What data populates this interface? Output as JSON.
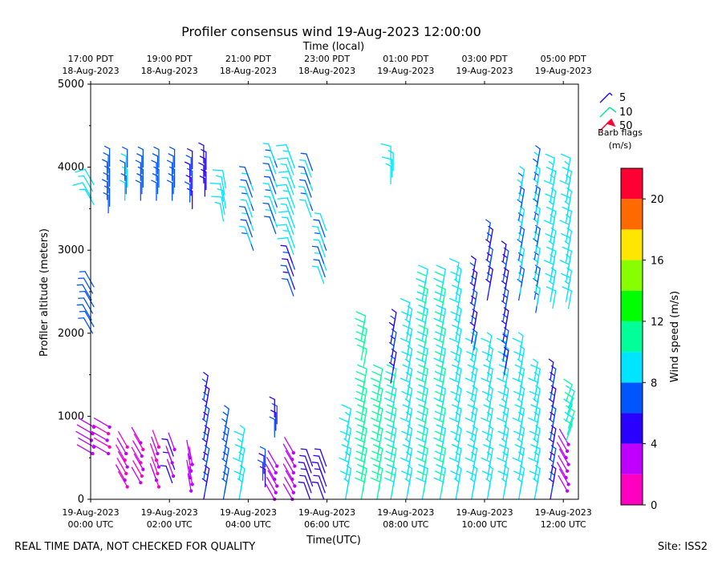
{
  "chart_data": {
    "type": "scatter",
    "subtype": "wind-barbs",
    "title": "Profiler consensus wind 19-Aug-2023 12:00:00",
    "top_axis_title": "Time (local)",
    "top_ticks": [
      {
        "line1": "17:00 PDT",
        "line2": "18-Aug-2023",
        "x": 0
      },
      {
        "line1": "19:00 PDT",
        "line2": "18-Aug-2023",
        "x": 2
      },
      {
        "line1": "21:00 PDT",
        "line2": "18-Aug-2023",
        "x": 4
      },
      {
        "line1": "23:00 PDT",
        "line2": "18-Aug-2023",
        "x": 6
      },
      {
        "line1": "01:00 PDT",
        "line2": "19-Aug-2023",
        "x": 8
      },
      {
        "line1": "03:00 PDT",
        "line2": "19-Aug-2023",
        "x": 10
      },
      {
        "line1": "05:00 PDT",
        "line2": "19-Aug-2023",
        "x": 12
      }
    ],
    "bottom_ticks": [
      {
        "line1": "19-Aug-2023",
        "line2": "00:00 UTC",
        "x": 0
      },
      {
        "line1": "19-Aug-2023",
        "line2": "02:00 UTC",
        "x": 2
      },
      {
        "line1": "19-Aug-2023",
        "line2": "04:00 UTC",
        "x": 4
      },
      {
        "line1": "19-Aug-2023",
        "line2": "06:00 UTC",
        "x": 6
      },
      {
        "line1": "19-Aug-2023",
        "line2": "08:00 UTC",
        "x": 8
      },
      {
        "line1": "19-Aug-2023",
        "line2": "10:00 UTC",
        "x": 10
      },
      {
        "line1": "19-Aug-2023",
        "line2": "12:00 UTC",
        "x": 12
      }
    ],
    "xlabel": "Time(UTC)",
    "ylabel": "Profiler altitude (meters)",
    "xlim": [
      0,
      12.35
    ],
    "ylim": [
      0,
      5000
    ],
    "yticks": [
      0,
      1000,
      2000,
      3000,
      4000,
      5000
    ],
    "yticks_minor": [
      500,
      1500,
      2500,
      3500,
      4500
    ],
    "barb_legend": {
      "title_line1": "Barb flags",
      "title_line2": "(m/s)",
      "entries": [
        {
          "label": "5",
          "color": "#2a10e6"
        },
        {
          "label": "10",
          "color": "#00e5a0"
        },
        {
          "label": "50",
          "color": "#ff0033"
        }
      ]
    },
    "colorbar": {
      "label": "Wind speed (m/s)",
      "min": 0,
      "max": 22,
      "ticks": [
        "0",
        "4",
        "8",
        "12",
        "16",
        "20"
      ],
      "tick_values": [
        0,
        4,
        8,
        12,
        16,
        20
      ],
      "colors": [
        "#ff00c0",
        "#bf00ff",
        "#2a00ff",
        "#0055ff",
        "#00e5ff",
        "#00ff99",
        "#00ff00",
        "#88ff00",
        "#ffe600",
        "#ff6a00",
        "#ff0033"
      ]
    },
    "columns": [
      {
        "t": 0.05,
        "segments": [
          {
            "z0": 550,
            "z1": 900,
            "speed": 2.5,
            "dir": 300
          },
          {
            "z0": 2000,
            "z1": 2600,
            "speed": 7,
            "dir": 330
          },
          {
            "z0": 3550,
            "z1": 3800,
            "speed": 9,
            "dir": 330
          }
        ]
      },
      {
        "t": 0.45,
        "segments": [
          {
            "z0": 550,
            "z1": 900,
            "speed": 2,
            "dir": 300
          },
          {
            "z0": 3450,
            "z1": 4050,
            "speed": 7,
            "dir": 0
          }
        ]
      },
      {
        "t": 0.9,
        "segments": [
          {
            "z0": 150,
            "z1": 700,
            "speed": 1.5,
            "dir": 330
          },
          {
            "z0": 3600,
            "z1": 4050,
            "speed": 8,
            "dir": 0
          }
        ]
      },
      {
        "t": 1.3,
        "segments": [
          {
            "z0": 200,
            "z1": 700,
            "speed": 2,
            "dir": 330
          },
          {
            "z0": 3600,
            "z1": 4050,
            "speed": 7,
            "dir": 0
          }
        ]
      },
      {
        "t": 1.7,
        "segments": [
          {
            "z0": 150,
            "z1": 700,
            "speed": 2,
            "dir": 340
          },
          {
            "z0": 3600,
            "z1": 4050,
            "speed": 7,
            "dir": 0
          }
        ]
      },
      {
        "t": 2.1,
        "segments": [
          {
            "z0": 200,
            "z1": 600,
            "speed": 3.5,
            "dir": 340
          },
          {
            "z0": 3600,
            "z1": 4050,
            "speed": 7,
            "dir": 0
          }
        ]
      },
      {
        "t": 2.55,
        "segments": [
          {
            "z0": 100,
            "z1": 500,
            "speed": 3,
            "dir": 350
          },
          {
            "z0": 3500,
            "z1": 4050,
            "speed": 6,
            "dir": 0
          }
        ]
      },
      {
        "t": 2.9,
        "segments": [
          {
            "z0": 0,
            "z1": 1300,
            "speed": 5.5,
            "dir": 10
          },
          {
            "z0": 3650,
            "z1": 4050,
            "speed": 5,
            "dir": 0
          }
        ]
      },
      {
        "t": 3.4,
        "segments": [
          {
            "z0": 0,
            "z1": 950,
            "speed": 7,
            "dir": 10
          },
          {
            "z0": 3350,
            "z1": 3800,
            "speed": 9,
            "dir": 350
          }
        ]
      },
      {
        "t": 3.8,
        "segments": [
          {
            "z0": 0,
            "z1": 650,
            "speed": 9,
            "dir": 10
          }
        ]
      },
      {
        "t": 4.1,
        "segments": [
          {
            "z0": 3000,
            "z1": 3850,
            "speed": 8,
            "dir": 340
          }
        ]
      },
      {
        "t": 4.4,
        "segments": [
          {
            "z0": 150,
            "z1": 450,
            "speed": 6,
            "dir": 0
          }
        ]
      },
      {
        "t": 4.7,
        "segments": [
          {
            "z0": 0,
            "z1": 450,
            "speed": 3,
            "dir": 330
          },
          {
            "z0": 750,
            "z1": 1000,
            "speed": 6,
            "dir": 0
          },
          {
            "z0": 3200,
            "z1": 4100,
            "speed": 8,
            "dir": 340
          }
        ]
      },
      {
        "t": 5.15,
        "segments": [
          {
            "z0": 0,
            "z1": 600,
            "speed": 3,
            "dir": 330
          },
          {
            "z0": 2450,
            "z1": 2850,
            "speed": 6,
            "dir": 340
          },
          {
            "z0": 2950,
            "z1": 4100,
            "speed": 9,
            "dir": 340
          }
        ]
      },
      {
        "t": 5.6,
        "segments": [
          {
            "z0": 0,
            "z1": 450,
            "speed": 4.5,
            "dir": 340
          },
          {
            "z0": 3400,
            "z1": 4000,
            "speed": 8,
            "dir": 340
          }
        ]
      },
      {
        "t": 5.95,
        "segments": [
          {
            "z0": 0,
            "z1": 450,
            "speed": 4.5,
            "dir": 340
          },
          {
            "z0": 2600,
            "z1": 3250,
            "speed": 8,
            "dir": 340
          }
        ]
      },
      {
        "t": 6.5,
        "segments": [
          {
            "z0": 0,
            "z1": 950,
            "speed": 9,
            "dir": 10
          }
        ]
      },
      {
        "t": 6.9,
        "segments": [
          {
            "z0": 0,
            "z1": 1400,
            "speed": 11,
            "dir": 10
          },
          {
            "z0": 1600,
            "z1": 2000,
            "speed": 11,
            "dir": 10
          }
        ]
      },
      {
        "t": 7.3,
        "segments": [
          {
            "z0": 0,
            "z1": 1400,
            "speed": 11,
            "dir": 10
          }
        ]
      },
      {
        "t": 7.65,
        "segments": [
          {
            "z0": 0,
            "z1": 1400,
            "speed": 10,
            "dir": 10
          },
          {
            "z0": 1400,
            "z1": 2100,
            "speed": 6,
            "dir": 10
          },
          {
            "z0": 3800,
            "z1": 4100,
            "speed": 9,
            "dir": 0
          }
        ]
      },
      {
        "t": 8.05,
        "segments": [
          {
            "z0": 0,
            "z1": 2200,
            "speed": 9,
            "dir": 10
          }
        ]
      },
      {
        "t": 8.45,
        "segments": [
          {
            "z0": 0,
            "z1": 2600,
            "speed": 10,
            "dir": 10
          }
        ]
      },
      {
        "t": 8.9,
        "segments": [
          {
            "z0": 0,
            "z1": 2600,
            "speed": 10,
            "dir": 10
          }
        ]
      },
      {
        "t": 9.3,
        "segments": [
          {
            "z0": 0,
            "z1": 2700,
            "speed": 9,
            "dir": 10
          }
        ]
      },
      {
        "t": 9.7,
        "segments": [
          {
            "z0": 0,
            "z1": 1800,
            "speed": 9,
            "dir": 10
          },
          {
            "z0": 1800,
            "z1": 2700,
            "speed": 6,
            "dir": 10
          }
        ]
      },
      {
        "t": 10.1,
        "segments": [
          {
            "z0": 0,
            "z1": 1800,
            "speed": 9,
            "dir": 10
          },
          {
            "z0": 2400,
            "z1": 3150,
            "speed": 6,
            "dir": 10
          }
        ]
      },
      {
        "t": 10.5,
        "segments": [
          {
            "z0": 0,
            "z1": 1800,
            "speed": 9,
            "dir": 10
          },
          {
            "z0": 1500,
            "z1": 2900,
            "speed": 6,
            "dir": 10
          }
        ]
      },
      {
        "t": 10.9,
        "segments": [
          {
            "z0": 0,
            "z1": 1800,
            "speed": 9,
            "dir": 10
          },
          {
            "z0": 2400,
            "z1": 3800,
            "speed": 8,
            "dir": 10
          }
        ]
      },
      {
        "t": 11.3,
        "segments": [
          {
            "z0": 0,
            "z1": 1500,
            "speed": 9,
            "dir": 10
          },
          {
            "z0": 2250,
            "z1": 4050,
            "speed": 8,
            "dir": 10
          }
        ]
      },
      {
        "t": 11.7,
        "segments": [
          {
            "z0": 0,
            "z1": 1500,
            "speed": 6,
            "dir": 10
          },
          {
            "z0": 2300,
            "z1": 3900,
            "speed": 9,
            "dir": 10
          }
        ]
      },
      {
        "t": 12.1,
        "segments": [
          {
            "z0": 100,
            "z1": 700,
            "speed": 3,
            "dir": 330
          },
          {
            "z0": 700,
            "z1": 1200,
            "speed": 10,
            "dir": 20
          },
          {
            "z0": 2300,
            "z1": 3900,
            "speed": 9,
            "dir": 10
          }
        ]
      }
    ]
  },
  "footer": {
    "left_note": "REAL TIME DATA, NOT CHECKED FOR QUALITY",
    "site": "Site: ISS2"
  }
}
